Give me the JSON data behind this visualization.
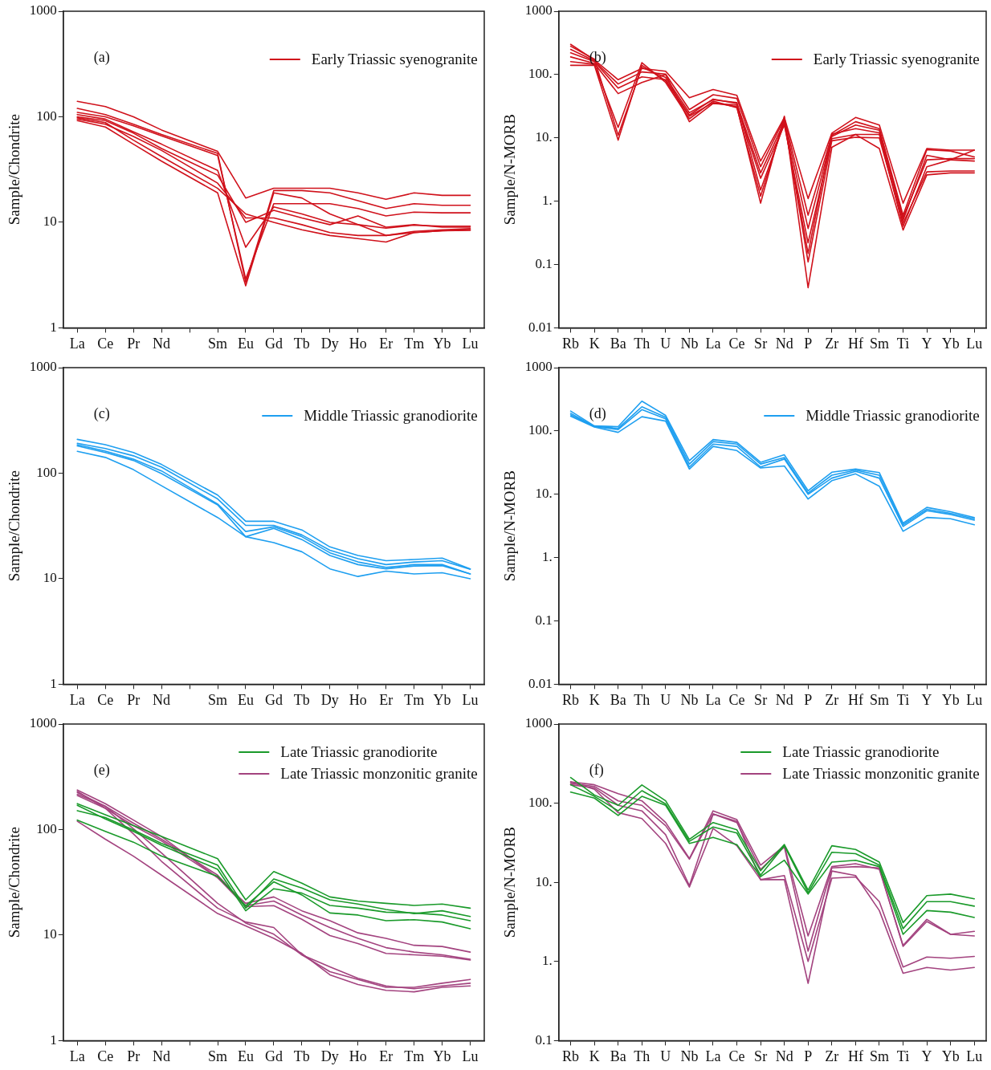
{
  "chart_data": [
    {
      "type": "line",
      "ylabel": "Sample/Chondrite",
      "annotations": [
        "(a)"
      ],
      "legend": "top right",
      "log": true,
      "ylim": [
        1,
        1000
      ],
      "yticks": [
        1,
        10,
        100,
        1000
      ],
      "categories": [
        "La",
        "Ce",
        "Pr",
        "Nd",
        null,
        "Sm",
        "Eu",
        "Gd",
        "Tb",
        "Dy",
        "Ho",
        "Er",
        "Tm",
        "Yb",
        "Lu"
      ],
      "series": [
        {
          "name": "Early Triassic syenogranite",
          "color": "#d0111b",
          "values": [
            140,
            125,
            100,
            75,
            null,
            47,
            17,
            21,
            21,
            21,
            19,
            16.5,
            19,
            18,
            18
          ]
        },
        {
          "color": "#d0111b",
          "values": [
            120,
            105,
            85,
            68,
            null,
            45,
            2.7,
            20,
            20,
            19,
            16,
            13.5,
            15,
            14.5,
            14.5
          ]
        },
        {
          "color": "#d0111b",
          "values": [
            110,
            100,
            82,
            66,
            null,
            43,
            2.9,
            15,
            15,
            15,
            13.5,
            11.5,
            12.5,
            12.3,
            12.3
          ]
        },
        {
          "color": "#d0111b",
          "values": [
            105,
            95,
            72,
            55,
            null,
            31,
            5.8,
            14,
            12,
            10,
            9.5,
            8.8,
            9.4,
            9.2,
            9.2
          ]
        },
        {
          "color": "#d0111b",
          "values": [
            100,
            92,
            70,
            50,
            null,
            28,
            10,
            13,
            11,
            9.5,
            11.5,
            9,
            9.5,
            9,
            9
          ]
        },
        {
          "color": "#d0111b",
          "values": [
            95,
            85,
            65,
            48,
            null,
            23.5,
            11,
            11,
            9.5,
            8,
            7.5,
            7.5,
            8.2,
            8.5,
            8.7
          ]
        },
        {
          "color": "#d0111b",
          "values": [
            98,
            88,
            60,
            42,
            null,
            21,
            12,
            10,
            8.5,
            7.5,
            7,
            6.5,
            8,
            8.3,
            8.5
          ]
        },
        {
          "color": "#d0111b",
          "values": [
            92,
            80,
            55,
            38,
            null,
            19,
            2.5,
            19,
            17,
            12,
            9.5,
            7.5,
            8,
            8.3,
            8.4
          ]
        }
      ]
    },
    {
      "type": "line",
      "ylabel": "Sample/N-MORB",
      "annotations": [
        "(b)"
      ],
      "legend": "top right",
      "log": true,
      "ylim": [
        0.01,
        1000
      ],
      "yticks": [
        0.01,
        0.1,
        {
          "value": 1,
          "label": "1."
        },
        {
          "value": 10,
          "label": "10."
        },
        {
          "value": 100,
          "label": "100."
        },
        1000
      ],
      "categories": [
        "Rb",
        "K",
        "Ba",
        "Th",
        "U",
        "Nb",
        "La",
        "Ce",
        "Sr",
        "Nd",
        "P",
        "Zr",
        "Hf",
        "Sm",
        "Ti",
        "Y",
        "Yb",
        "Lu"
      ],
      "series": [
        {
          "name": "Early Triassic syenogranite",
          "color": "#d0111b",
          "values": [
            300,
            170,
            83,
            125,
            113,
            43,
            58,
            47,
            4.3,
            21,
            1.1,
            11.9,
            21,
            16,
            0.93,
            6.8,
            6.4,
            6.4
          ]
        },
        {
          "color": "#d0111b",
          "values": [
            250,
            165,
            71,
            110,
            102,
            28,
            48,
            42,
            3.5,
            20,
            0.6,
            11,
            18,
            14,
            0.6,
            6.5,
            6.2,
            5
          ]
        },
        {
          "color": "#d0111b",
          "values": [
            220,
            160,
            61,
            92,
            83,
            23,
            41,
            35,
            2.8,
            18,
            0.37,
            10.5,
            16,
            13.2,
            0.5,
            5.3,
            4.5,
            4.3
          ]
        },
        {
          "color": "#d0111b",
          "values": [
            190,
            150,
            50,
            75,
            100,
            18,
            35,
            33,
            2.3,
            16,
            0.22,
            9.7,
            11.3,
            11.3,
            0.4,
            3.5,
            4.5,
            6.4
          ]
        },
        {
          "color": "#d0111b",
          "values": [
            160,
            145,
            14.6,
            154,
            75,
            20,
            38,
            30,
            1.2,
            19,
            0.11,
            9,
            10.2,
            10,
            0.45,
            2.9,
            3,
            3
          ]
        },
        {
          "color": "#d0111b",
          "values": [
            140,
            140,
            9.2,
            140,
            80,
            22,
            36,
            31,
            0.93,
            22,
            0.043,
            7.1,
            11.3,
            6.8,
            0.35,
            2.6,
            2.8,
            2.8
          ]
        },
        {
          "color": "#d0111b",
          "values": [
            280,
            175,
            11,
            130,
            90,
            25,
            40,
            36,
            1.5,
            17,
            0.15,
            11.5,
            14,
            12,
            0.55,
            4.5,
            4.7,
            4.7
          ]
        }
      ]
    },
    {
      "type": "line",
      "ylabel": "Sample/Chondrite",
      "annotations": [
        "(c)"
      ],
      "legend": "top right",
      "log": true,
      "ylim": [
        1,
        1000
      ],
      "yticks": [
        1,
        10,
        100,
        1000
      ],
      "categories": [
        "La",
        "Ce",
        "Pr",
        "Nd",
        null,
        "Sm",
        "Eu",
        "Gd",
        "Tb",
        "Dy",
        "Ho",
        "Er",
        "Tm",
        "Yb",
        "Lu"
      ],
      "series": [
        {
          "name": "Middle Triassic granodiorite",
          "color": "#1e9ff0",
          "values": [
            209,
            186,
            157,
            121,
            null,
            62,
            35,
            35,
            29,
            20,
            16.6,
            14.8,
            15.2,
            15.7,
            12.4
          ]
        },
        {
          "color": "#1e9ff0",
          "values": [
            192,
            171,
            146,
            114,
            null,
            57,
            32,
            32,
            26,
            18.6,
            15.5,
            13.6,
            14.4,
            14.8,
            12.3
          ]
        },
        {
          "color": "#1e9ff0",
          "values": [
            186,
            162,
            136,
            105,
            null,
            51,
            28,
            31,
            25,
            17.6,
            14.4,
            12.8,
            13.6,
            13.6,
            11.1
          ]
        },
        {
          "color": "#1e9ff0",
          "values": [
            181,
            157,
            132,
            99,
            null,
            50,
            25,
            30,
            23.5,
            16.6,
            13.6,
            12.4,
            13.2,
            13.3,
            11.1
          ]
        },
        {
          "color": "#1e9ff0",
          "values": [
            161,
            141,
            108,
            76,
            null,
            38,
            25,
            22,
            18,
            12.4,
            10.5,
            11.8,
            11.1,
            11.4,
            10
          ]
        }
      ]
    },
    {
      "type": "line",
      "ylabel": "Sample/N-MORB",
      "annotations": [
        "(d)"
      ],
      "legend": "top right",
      "log": true,
      "ylim": [
        0.01,
        1000
      ],
      "yticks": [
        0.01,
        0.1,
        {
          "value": 1,
          "label": "1."
        },
        {
          "value": 10,
          "label": "10."
        },
        {
          "value": 100,
          "label": "100."
        },
        1000
      ],
      "categories": [
        "Rb",
        "K",
        "Ba",
        "Th",
        "U",
        "Nb",
        "La",
        "Ce",
        "Sr",
        "Nd",
        "P",
        "Zr",
        "Hf",
        "Sm",
        "Ti",
        "Y",
        "Yb",
        "Lu"
      ],
      "series": [
        {
          "name": "Middle Triassic granodiorite",
          "color": "#1e9ff0",
          "values": [
            206,
            120,
            117,
            296,
            176,
            34,
            73,
            66,
            32,
            42,
            11.4,
            22.3,
            25,
            22,
            3.5,
            6.2,
            5.3,
            4.3
          ]
        },
        {
          "color": "#1e9ff0",
          "values": [
            190,
            118,
            110,
            241,
            165,
            30,
            68,
            62,
            30,
            38,
            10.5,
            20,
            24,
            20,
            3.3,
            5.8,
            5,
            4.1
          ]
        },
        {
          "color": "#1e9ff0",
          "values": [
            180,
            117,
            105,
            217,
            155,
            27,
            62,
            57,
            27,
            36,
            10,
            18,
            23,
            18,
            3.1,
            5.5,
            4.8,
            3.9
          ]
        },
        {
          "color": "#1e9ff0",
          "values": [
            171,
            115,
            95,
            168,
            143,
            25,
            57,
            49,
            26,
            28,
            8.4,
            16.4,
            21,
            13.4,
            2.6,
            4.3,
            4.1,
            3.3
          ]
        }
      ]
    },
    {
      "type": "line",
      "ylabel": "Sample/Chondrite",
      "annotations": [
        "(e)"
      ],
      "legend": "top right",
      "log": true,
      "ylim": [
        1,
        1000
      ],
      "yticks": [
        1,
        10,
        100,
        1000
      ],
      "categories": [
        "La",
        "Ce",
        "Pr",
        "Nd",
        null,
        "Sm",
        "Eu",
        "Gd",
        "Tb",
        "Dy",
        "Ho",
        "Er",
        "Tm",
        "Yb",
        "Lu"
      ],
      "series": [
        {
          "name": "Late Triassic granodiorite",
          "color": "#1a9a2a",
          "values": [
            176,
            138,
            109,
            86,
            null,
            53,
            21.6,
            40,
            31,
            23,
            21,
            20,
            19.1,
            19.7,
            18
          ]
        },
        {
          "color": "#1a9a2a",
          "values": [
            151,
            130,
            99,
            74,
            null,
            46,
            18,
            34,
            28,
            21.6,
            19.7,
            17.5,
            16,
            17,
            15
          ]
        },
        {
          "color": "#1a9a2a",
          "values": [
            170,
            126,
            96,
            71,
            null,
            42,
            17,
            27.5,
            25,
            19.1,
            18,
            16.5,
            16.2,
            15.5,
            13.7
          ]
        },
        {
          "color": "#1a9a2a",
          "values": [
            123,
            96,
            76,
            56,
            null,
            36,
            19,
            32,
            24,
            16.2,
            15.5,
            13.7,
            14,
            13.3,
            11.5
          ]
        },
        {
          "name": "Late Triassic monzonitic granite",
          "color": "#a3437f",
          "values": [
            237,
            176,
            123,
            86,
            null,
            35,
            20,
            23,
            17,
            13.7,
            10.5,
            9.3,
            8,
            7.8,
            6.9
          ]
        },
        {
          "color": "#a3437f",
          "values": [
            216,
            166,
            115,
            81,
            null,
            37,
            19,
            21,
            15.5,
            11.8,
            9.3,
            7.6,
            6.9,
            6.5,
            5.9
          ]
        },
        {
          "color": "#a3437f",
          "values": [
            210,
            159,
            109,
            78,
            null,
            35,
            18.6,
            19,
            14.1,
            9.9,
            8.3,
            6.7,
            6.5,
            6.3,
            5.8
          ]
        },
        {
          "color": "#a3437f",
          "values": [
            230,
            159,
            91,
            50,
            null,
            18,
            13.3,
            11.8,
            6.5,
            4.5,
            3.8,
            3.2,
            3.2,
            3.5,
            3.8
          ]
        },
        {
          "color": "#a3437f",
          "values": [
            120,
            81,
            56,
            37,
            null,
            16,
            12.2,
            9.3,
            6.7,
            4.2,
            3.4,
            3,
            2.9,
            3.2,
            3.3
          ]
        },
        {
          "color": "#a3437f",
          "values": [
            225,
            166,
            102,
            60,
            null,
            20,
            13,
            10.2,
            6.5,
            5,
            3.9,
            3.3,
            3.1,
            3.3,
            3.5
          ]
        }
      ]
    },
    {
      "type": "line",
      "ylabel": "Sample/N-MORB",
      "annotations": [
        "(f)"
      ],
      "legend": "top right",
      "log": true,
      "ylim": [
        0.1,
        1000
      ],
      "yticks": [
        0.1,
        {
          "value": 1,
          "label": "1."
        },
        {
          "value": 10,
          "label": "10."
        },
        {
          "value": 100,
          "label": "100."
        },
        1000
      ],
      "categories": [
        "Rb",
        "K",
        "Ba",
        "Th",
        "U",
        "Nb",
        "La",
        "Ce",
        "Sr",
        "Nd",
        "P",
        "Zr",
        "Hf",
        "Sm",
        "Ti",
        "Y",
        "Yb",
        "Lu"
      ],
      "series": [
        {
          "name": "Late Triassic granodiorite",
          "color": "#1a9a2a",
          "values": [
            211,
            127,
            94,
            170,
            107,
            35,
            57,
            46,
            14,
            30,
            8,
            29,
            26,
            18,
            3.1,
            6.8,
            7.1,
            6.2
          ]
        },
        {
          "color": "#1a9a2a",
          "values": [
            171,
            122,
            80,
            144,
            98,
            33,
            50,
            42,
            12.3,
            29,
            7.4,
            24,
            23,
            16.5,
            2.6,
            5.7,
            5.7,
            5
          ]
        },
        {
          "color": "#1a9a2a",
          "values": [
            138,
            116,
            70,
            122,
            94,
            31,
            37,
            30,
            11.8,
            19,
            7.1,
            18,
            19,
            15.8,
            2.2,
            4.4,
            4.2,
            3.6
          ]
        },
        {
          "name": "Late Triassic monzonitic granite",
          "color": "#a3437f",
          "values": [
            186,
            171,
            132,
            107,
            57,
            20,
            80,
            62,
            16.5,
            29,
            2.1,
            15.8,
            17.2,
            14.6,
            1.6,
            3.4,
            2.2,
            2.4
          ]
        },
        {
          "color": "#a3437f",
          "values": [
            178,
            163,
            107,
            94,
            52,
            19.6,
            73,
            57,
            14.6,
            28,
            1.35,
            15.2,
            15.8,
            15.2,
            1.55,
            3.2,
            2.2,
            2.1
          ]
        },
        {
          "color": "#a3437f",
          "values": [
            171,
            156,
            94,
            80,
            40,
            9.1,
            73,
            59,
            10.8,
            12.2,
            1,
            11.3,
            11.7,
            5.7,
            0.85,
            1.14,
            1.1,
            1.16
          ]
        },
        {
          "color": "#a3437f",
          "values": [
            186,
            150,
            76,
            64,
            31,
            8.7,
            48,
            29,
            10.8,
            10.8,
            0.53,
            13.9,
            12.2,
            4.4,
            0.71,
            0.84,
            0.78,
            0.84
          ]
        }
      ]
    }
  ]
}
